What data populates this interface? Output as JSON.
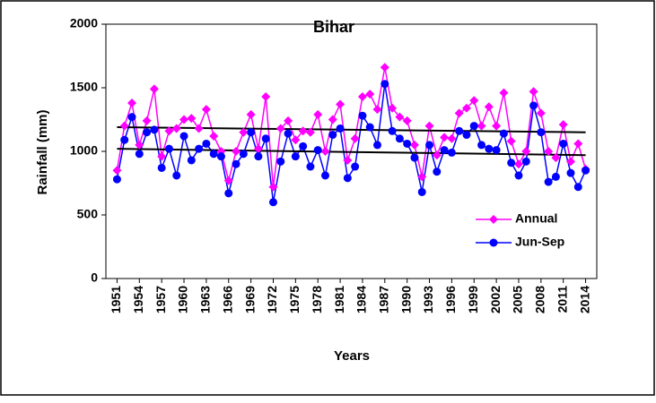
{
  "chart_data": {
    "type": "line",
    "title": "Bihar",
    "xlabel": "Years",
    "ylabel": "Rainfall (mm)",
    "x": [
      1951,
      1952,
      1953,
      1954,
      1955,
      1956,
      1957,
      1958,
      1959,
      1960,
      1961,
      1962,
      1963,
      1964,
      1965,
      1966,
      1967,
      1968,
      1969,
      1970,
      1971,
      1972,
      1973,
      1974,
      1975,
      1976,
      1977,
      1978,
      1979,
      1980,
      1981,
      1982,
      1983,
      1984,
      1985,
      1986,
      1987,
      1988,
      1989,
      1990,
      1991,
      1992,
      1993,
      1994,
      1995,
      1996,
      1997,
      1998,
      1999,
      2000,
      2001,
      2002,
      2003,
      2004,
      2005,
      2006,
      2007,
      2008,
      2009,
      2010,
      2011,
      2012,
      2013,
      2014
    ],
    "series": [
      {
        "name": "Annual",
        "color": "#ff00ff",
        "marker": "diamond",
        "values": [
          850,
          1200,
          1380,
          1050,
          1240,
          1490,
          960,
          1160,
          1180,
          1250,
          1260,
          1180,
          1330,
          1120,
          1000,
          770,
          1000,
          1150,
          1290,
          1020,
          1430,
          720,
          1180,
          1240,
          1090,
          1160,
          1150,
          1290,
          1000,
          1250,
          1370,
          930,
          1100,
          1430,
          1450,
          1330,
          1660,
          1340,
          1270,
          1240,
          1050,
          800,
          1200,
          970,
          1110,
          1100,
          1300,
          1340,
          1400,
          1200,
          1350,
          1200,
          1460,
          1080,
          900,
          1000,
          1470,
          1300,
          1000,
          950,
          1210,
          920,
          1060,
          860
        ]
      },
      {
        "name": "Jun-Sep",
        "color": "#0000ff",
        "marker": "circle",
        "values": [
          780,
          1090,
          1270,
          980,
          1150,
          1170,
          870,
          1020,
          810,
          1120,
          930,
          1020,
          1060,
          980,
          960,
          670,
          900,
          980,
          1150,
          960,
          1100,
          600,
          920,
          1140,
          960,
          1040,
          880,
          1010,
          810,
          1130,
          1180,
          790,
          880,
          1280,
          1190,
          1050,
          1530,
          1160,
          1100,
          1060,
          950,
          680,
          1050,
          840,
          1010,
          990,
          1160,
          1130,
          1200,
          1050,
          1020,
          1010,
          1140,
          910,
          810,
          920,
          1360,
          1150,
          760,
          800,
          1060,
          830,
          720,
          850
        ]
      }
    ],
    "trends": [
      {
        "color": "#000000",
        "x": [
          1951,
          2014
        ],
        "values": [
          1190,
          1150
        ]
      },
      {
        "color": "#000000",
        "x": [
          1951,
          2014
        ],
        "values": [
          1020,
          970
        ]
      }
    ],
    "xlim": [
      1949.5,
      2015.5
    ],
    "xticks": [
      1951,
      1954,
      1957,
      1960,
      1963,
      1966,
      1969,
      1972,
      1975,
      1978,
      1981,
      1984,
      1987,
      1990,
      1993,
      1996,
      1999,
      2002,
      2005,
      2008,
      2011,
      2014
    ],
    "ylim": [
      0,
      2000
    ],
    "yticks": [
      0,
      500,
      1000,
      1500,
      2000
    ],
    "grid": false,
    "legend": "center-right"
  }
}
